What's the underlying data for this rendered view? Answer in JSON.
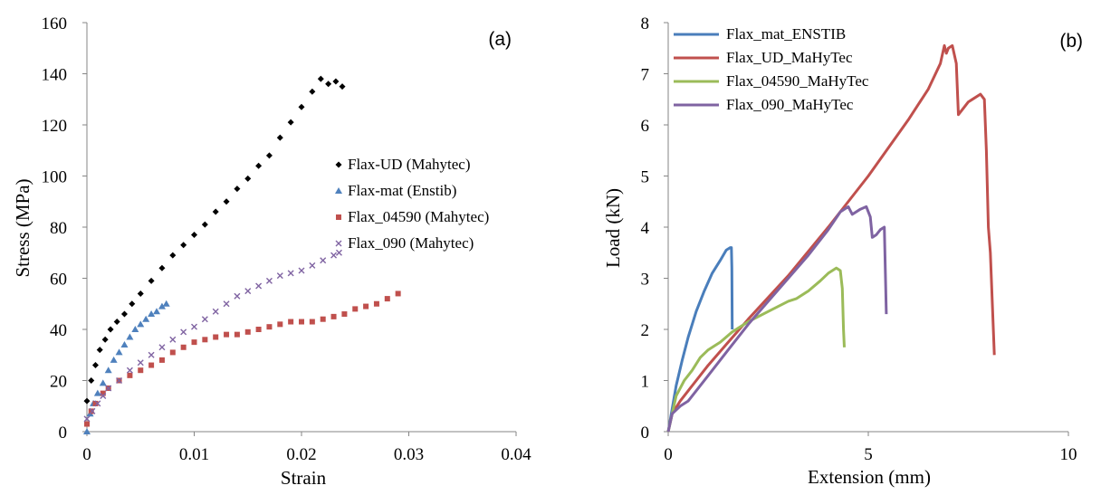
{
  "chart_data": [
    {
      "type": "scatter",
      "panel_label": "(a)",
      "xlabel": "Strain",
      "ylabel": "Stress (MPa)",
      "xlim": [
        0,
        0.04
      ],
      "ylim": [
        0,
        160
      ],
      "x_ticks": [
        "0",
        "0.01",
        "0.02",
        "0.03",
        "0.04"
      ],
      "y_ticks": [
        "0",
        "20",
        "40",
        "60",
        "80",
        "100",
        "120",
        "140",
        "160"
      ],
      "grid": false,
      "legend_position": "right",
      "series": [
        {
          "name": "Flax-UD (Mahytec)",
          "color": "#000000",
          "marker": "diamond",
          "points": [
            [
              0,
              12
            ],
            [
              0.0004,
              20
            ],
            [
              0.0008,
              26
            ],
            [
              0.0012,
              32
            ],
            [
              0.0017,
              36
            ],
            [
              0.0022,
              40
            ],
            [
              0.0028,
              43
            ],
            [
              0.0035,
              46
            ],
            [
              0.0042,
              50
            ],
            [
              0.005,
              54
            ],
            [
              0.006,
              59
            ],
            [
              0.007,
              64
            ],
            [
              0.008,
              69
            ],
            [
              0.009,
              73
            ],
            [
              0.01,
              77
            ],
            [
              0.011,
              81
            ],
            [
              0.012,
              86
            ],
            [
              0.013,
              90
            ],
            [
              0.014,
              95
            ],
            [
              0.015,
              99
            ],
            [
              0.016,
              104
            ],
            [
              0.017,
              108
            ],
            [
              0.018,
              115
            ],
            [
              0.019,
              121
            ],
            [
              0.02,
              127
            ],
            [
              0.021,
              133
            ],
            [
              0.0218,
              138
            ],
            [
              0.0225,
              136
            ],
            [
              0.0232,
              137
            ],
            [
              0.0238,
              135
            ]
          ]
        },
        {
          "name": "Flax-mat (Enstib)",
          "color": "#4f81bd",
          "marker": "triangle",
          "points": [
            [
              0,
              0
            ],
            [
              0.0003,
              7
            ],
            [
              0.0006,
              11
            ],
            [
              0.001,
              15
            ],
            [
              0.0015,
              19
            ],
            [
              0.002,
              24
            ],
            [
              0.0025,
              28
            ],
            [
              0.003,
              31
            ],
            [
              0.0035,
              34
            ],
            [
              0.004,
              37
            ],
            [
              0.0045,
              40
            ],
            [
              0.005,
              42
            ],
            [
              0.0055,
              44
            ],
            [
              0.006,
              46
            ],
            [
              0.0065,
              47
            ],
            [
              0.007,
              49
            ],
            [
              0.0074,
              50
            ]
          ]
        },
        {
          "name": "Flax_04590 (Mahytec)",
          "color": "#c0504d",
          "marker": "square",
          "points": [
            [
              0,
              3
            ],
            [
              0.0004,
              8
            ],
            [
              0.0008,
              11
            ],
            [
              0.0015,
              15
            ],
            [
              0.002,
              17
            ],
            [
              0.003,
              20
            ],
            [
              0.004,
              22
            ],
            [
              0.005,
              24
            ],
            [
              0.006,
              26
            ],
            [
              0.007,
              28
            ],
            [
              0.008,
              31
            ],
            [
              0.009,
              33
            ],
            [
              0.01,
              35
            ],
            [
              0.011,
              36
            ],
            [
              0.012,
              37
            ],
            [
              0.013,
              38
            ],
            [
              0.014,
              38
            ],
            [
              0.015,
              39
            ],
            [
              0.016,
              40
            ],
            [
              0.017,
              41
            ],
            [
              0.018,
              42
            ],
            [
              0.019,
              43
            ],
            [
              0.02,
              43
            ],
            [
              0.021,
              43
            ],
            [
              0.022,
              44
            ],
            [
              0.023,
              45
            ],
            [
              0.024,
              46
            ],
            [
              0.025,
              48
            ],
            [
              0.026,
              49
            ],
            [
              0.027,
              50
            ],
            [
              0.028,
              52
            ],
            [
              0.029,
              54
            ]
          ]
        },
        {
          "name": "Flax_090 (Mahytec)",
          "color": "#8064a2",
          "marker": "x",
          "points": [
            [
              0,
              5
            ],
            [
              0.0005,
              8
            ],
            [
              0.001,
              11
            ],
            [
              0.0015,
              14
            ],
            [
              0.002,
              17
            ],
            [
              0.003,
              20
            ],
            [
              0.004,
              24
            ],
            [
              0.005,
              27
            ],
            [
              0.006,
              30
            ],
            [
              0.007,
              33
            ],
            [
              0.008,
              36
            ],
            [
              0.009,
              39
            ],
            [
              0.01,
              41
            ],
            [
              0.011,
              44
            ],
            [
              0.012,
              47
            ],
            [
              0.013,
              50
            ],
            [
              0.014,
              53
            ],
            [
              0.015,
              55
            ],
            [
              0.016,
              57
            ],
            [
              0.017,
              59
            ],
            [
              0.018,
              61
            ],
            [
              0.019,
              62
            ],
            [
              0.02,
              63
            ],
            [
              0.021,
              65
            ],
            [
              0.022,
              67
            ],
            [
              0.023,
              69
            ],
            [
              0.0235,
              70
            ]
          ]
        }
      ]
    },
    {
      "type": "line",
      "panel_label": "(b)",
      "xlabel": "Extension (mm)",
      "ylabel": "Load (kN)",
      "xlim": [
        0,
        10
      ],
      "ylim": [
        0,
        8
      ],
      "x_ticks": [
        "0",
        "5",
        "10"
      ],
      "y_ticks": [
        "0",
        "1",
        "2",
        "3",
        "4",
        "5",
        "6",
        "7",
        "8"
      ],
      "grid": false,
      "legend_position": "top-left",
      "series": [
        {
          "name": "Flax_mat_ENSTIB",
          "color": "#4a7ebb",
          "points": [
            [
              0,
              0
            ],
            [
              0.1,
              0.45
            ],
            [
              0.2,
              0.9
            ],
            [
              0.35,
              1.4
            ],
            [
              0.5,
              1.85
            ],
            [
              0.7,
              2.35
            ],
            [
              0.9,
              2.75
            ],
            [
              1.1,
              3.1
            ],
            [
              1.3,
              3.35
            ],
            [
              1.45,
              3.55
            ],
            [
              1.55,
              3.6
            ],
            [
              1.58,
              3.6
            ],
            [
              1.59,
              3.2
            ],
            [
              1.6,
              2.0
            ]
          ]
        },
        {
          "name": "Flax_UD_MaHyTec",
          "color": "#c0504d",
          "points": [
            [
              0,
              0
            ],
            [
              0.1,
              0.35
            ],
            [
              0.3,
              0.6
            ],
            [
              0.5,
              0.8
            ],
            [
              1,
              1.3
            ],
            [
              1.5,
              1.75
            ],
            [
              2,
              2.2
            ],
            [
              3,
              3.05
            ],
            [
              4,
              4.0
            ],
            [
              5,
              5.0
            ],
            [
              6,
              6.1
            ],
            [
              6.5,
              6.7
            ],
            [
              6.8,
              7.2
            ],
            [
              6.9,
              7.55
            ],
            [
              6.95,
              7.4
            ],
            [
              7.0,
              7.5
            ],
            [
              7.1,
              7.55
            ],
            [
              7.2,
              7.2
            ],
            [
              7.25,
              6.2
            ],
            [
              7.35,
              6.3
            ],
            [
              7.5,
              6.45
            ],
            [
              7.6,
              6.5
            ],
            [
              7.8,
              6.6
            ],
            [
              7.9,
              6.5
            ],
            [
              7.95,
              5.5
            ],
            [
              8.0,
              4.0
            ],
            [
              8.05,
              3.5
            ],
            [
              8.1,
              2.5
            ],
            [
              8.15,
              1.5
            ]
          ]
        },
        {
          "name": "Flax_04590_MaHyTec",
          "color": "#9bbb59",
          "points": [
            [
              0,
              0
            ],
            [
              0.2,
              0.7
            ],
            [
              0.4,
              1.0
            ],
            [
              0.6,
              1.2
            ],
            [
              0.8,
              1.45
            ],
            [
              1.0,
              1.6
            ],
            [
              1.3,
              1.75
            ],
            [
              1.6,
              1.95
            ],
            [
              2.0,
              2.15
            ],
            [
              2.5,
              2.35
            ],
            [
              3.0,
              2.55
            ],
            [
              3.2,
              2.6
            ],
            [
              3.5,
              2.75
            ],
            [
              3.8,
              2.95
            ],
            [
              4.0,
              3.1
            ],
            [
              4.2,
              3.2
            ],
            [
              4.3,
              3.15
            ],
            [
              4.35,
              2.8
            ],
            [
              4.38,
              2.0
            ],
            [
              4.4,
              1.65
            ]
          ]
        },
        {
          "name": "Flax_090_MaHyTec",
          "color": "#7f63a2",
          "points": [
            [
              0,
              0
            ],
            [
              0.1,
              0.35
            ],
            [
              0.3,
              0.5
            ],
            [
              0.5,
              0.6
            ],
            [
              1,
              1.1
            ],
            [
              1.5,
              1.6
            ],
            [
              2,
              2.1
            ],
            [
              2.5,
              2.55
            ],
            [
              3,
              3.0
            ],
            [
              3.5,
              3.45
            ],
            [
              4,
              3.95
            ],
            [
              4.3,
              4.3
            ],
            [
              4.5,
              4.4
            ],
            [
              4.6,
              4.25
            ],
            [
              4.8,
              4.35
            ],
            [
              4.95,
              4.4
            ],
            [
              5.05,
              4.2
            ],
            [
              5.1,
              3.8
            ],
            [
              5.2,
              3.85
            ],
            [
              5.3,
              3.95
            ],
            [
              5.4,
              4.0
            ],
            [
              5.45,
              2.3
            ]
          ]
        }
      ]
    }
  ]
}
